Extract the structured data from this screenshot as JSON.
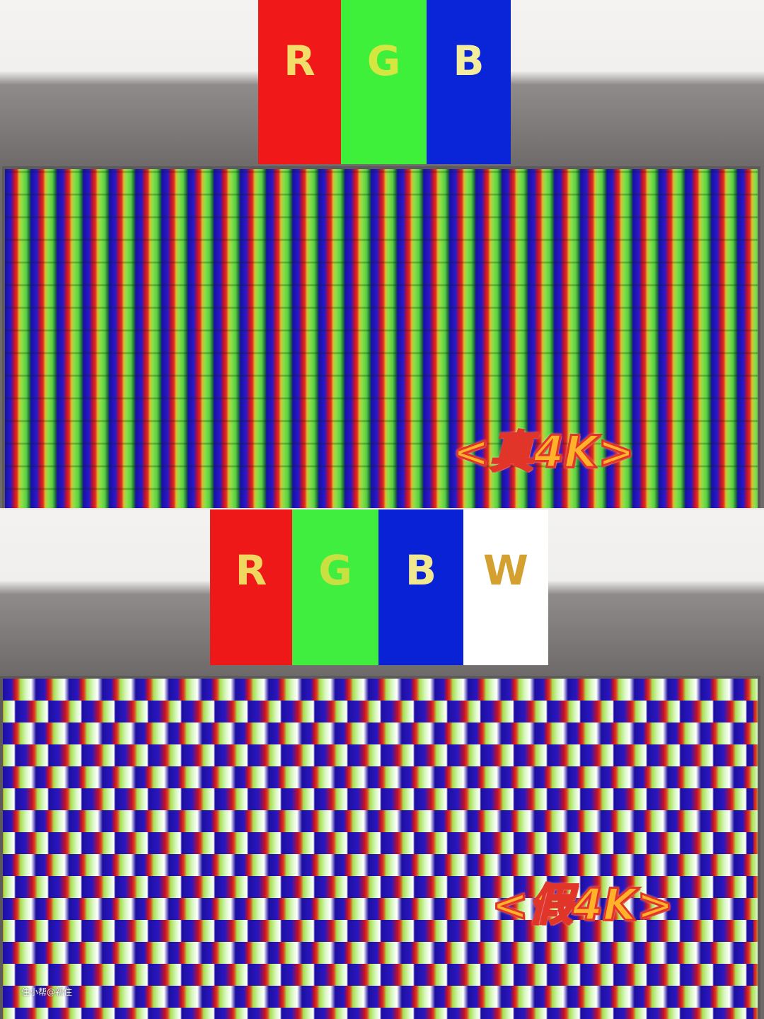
{
  "top": {
    "bars": [
      {
        "letter": "R",
        "color": "#f01818",
        "text_color": "#f3dd6a"
      },
      {
        "letter": "G",
        "color": "#3ef03a",
        "text_color": "#d4e640"
      },
      {
        "letter": "B",
        "color": "#0a24d8",
        "text_color": "#f2ec9c"
      }
    ],
    "label": "<真4K>"
  },
  "bottom": {
    "bars": [
      {
        "letter": "R",
        "color": "#ee1818",
        "text_color": "#f0d860"
      },
      {
        "letter": "G",
        "color": "#40ee40",
        "text_color": "#c8e040"
      },
      {
        "letter": "B",
        "color": "#0a22d6",
        "text_color": "#f2e890"
      },
      {
        "letter": "W",
        "color": "#ffffff",
        "text_color": "#d4a030"
      }
    ],
    "label": "<假4K>"
  },
  "watermark": "住小帮@新住"
}
